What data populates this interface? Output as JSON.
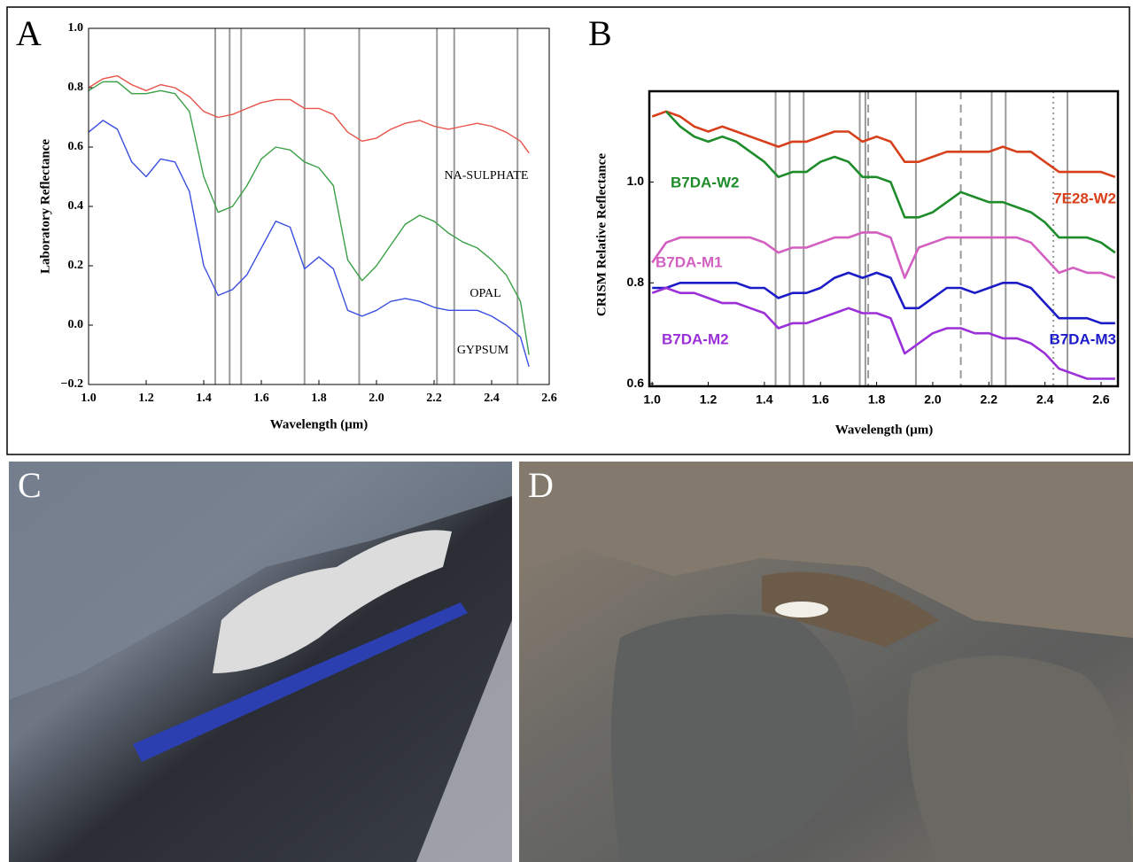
{
  "chart_data": [
    {
      "type": "line",
      "panel_label": "A",
      "x_label": "Wavelength (μm)",
      "y_label": "Laboratory Reflectance",
      "xlim": [
        1.0,
        2.6
      ],
      "ylim": [
        -0.2,
        1.0
      ],
      "xticks": [
        {
          "value": 1,
          "label": "1.0"
        },
        1.2,
        1.4,
        1.6,
        1.8,
        {
          "value": 2,
          "label": "2.0"
        },
        2.2,
        2.4,
        2.6
      ],
      "yticks": [
        {
          "value": -0.2,
          "label": "−0.2"
        },
        {
          "value": 0,
          "label": "0.0"
        },
        0.2,
        0.4,
        0.6,
        0.8,
        {
          "value": 1,
          "label": "1.0"
        }
      ],
      "vlines": [
        1.44,
        1.49,
        1.53,
        1.75,
        1.94,
        2.21,
        2.27,
        2.49
      ],
      "x": [
        1.0,
        1.05,
        1.1,
        1.15,
        1.2,
        1.25,
        1.3,
        1.35,
        1.4,
        1.45,
        1.5,
        1.55,
        1.6,
        1.65,
        1.7,
        1.75,
        1.8,
        1.85,
        1.9,
        1.95,
        2.0,
        2.05,
        2.1,
        2.15,
        2.2,
        2.25,
        2.3,
        2.35,
        2.4,
        2.45,
        2.5,
        2.53
      ],
      "series": [
        {
          "name": "NA-SULPHATE",
          "color": "#e8534a",
          "values": [
            0.8,
            0.83,
            0.84,
            0.81,
            0.79,
            0.81,
            0.8,
            0.77,
            0.72,
            0.7,
            0.71,
            0.73,
            0.75,
            0.76,
            0.76,
            0.73,
            0.73,
            0.71,
            0.65,
            0.62,
            0.63,
            0.66,
            0.68,
            0.69,
            0.67,
            0.66,
            0.67,
            0.68,
            0.67,
            0.65,
            0.62,
            0.58
          ]
        },
        {
          "name": "OPAL",
          "color": "#3aa046",
          "values": [
            0.79,
            0.82,
            0.82,
            0.78,
            0.78,
            0.79,
            0.78,
            0.72,
            0.5,
            0.38,
            0.4,
            0.47,
            0.56,
            0.6,
            0.59,
            0.55,
            0.53,
            0.47,
            0.22,
            0.15,
            0.2,
            0.27,
            0.34,
            0.37,
            0.35,
            0.31,
            0.28,
            0.26,
            0.22,
            0.17,
            0.08,
            -0.1
          ]
        },
        {
          "name": "GYPSUM",
          "color": "#3b4fe0",
          "values": [
            0.65,
            0.69,
            0.66,
            0.55,
            0.5,
            0.56,
            0.55,
            0.45,
            0.2,
            0.1,
            0.12,
            0.17,
            0.26,
            0.35,
            0.33,
            0.19,
            0.23,
            0.19,
            0.05,
            0.03,
            0.05,
            0.08,
            0.09,
            0.08,
            0.06,
            0.05,
            0.05,
            0.05,
            0.03,
            0.0,
            -0.04,
            -0.14
          ]
        }
      ]
    },
    {
      "type": "line",
      "panel_label": "B",
      "x_label": "Wavelength (μm)",
      "y_label": "CRISM Relative Reflectance",
      "xlim": [
        0.99,
        2.66
      ],
      "ylim": [
        0.595,
        1.18
      ],
      "xticks": [
        {
          "value": 1,
          "label": "1.0"
        },
        1.2,
        1.4,
        1.6,
        1.8,
        {
          "value": 2,
          "label": "2.0"
        },
        2.2,
        2.4,
        2.6
      ],
      "yticks": [
        0.6,
        0.8,
        {
          "value": 1,
          "label": "1.0"
        }
      ],
      "vlines": [
        1.44,
        1.49,
        1.54,
        1.74,
        1.76,
        1.94,
        2.21,
        2.26,
        2.48
      ],
      "dashed_vlines": [
        1.77,
        2.1
      ],
      "dotted_vlines": [
        2.43
      ],
      "x": [
        1.0,
        1.05,
        1.1,
        1.15,
        1.2,
        1.25,
        1.3,
        1.35,
        1.4,
        1.45,
        1.5,
        1.55,
        1.6,
        1.65,
        1.7,
        1.75,
        1.8,
        1.85,
        1.9,
        1.95,
        2.0,
        2.05,
        2.1,
        2.15,
        2.2,
        2.25,
        2.3,
        2.35,
        2.4,
        2.45,
        2.5,
        2.55,
        2.6,
        2.65
      ],
      "series": [
        {
          "name": "7E28-W2",
          "color": "#d8401b",
          "values": [
            1.13,
            1.14,
            1.13,
            1.11,
            1.1,
            1.11,
            1.1,
            1.09,
            1.08,
            1.07,
            1.08,
            1.08,
            1.09,
            1.1,
            1.1,
            1.08,
            1.09,
            1.08,
            1.04,
            1.04,
            1.05,
            1.06,
            1.06,
            1.06,
            1.06,
            1.07,
            1.06,
            1.06,
            1.04,
            1.02,
            1.02,
            1.02,
            1.02,
            1.01
          ]
        },
        {
          "name": "B7DA-W2",
          "color": "#1e8c2a",
          "values": [
            null,
            1.14,
            1.11,
            1.09,
            1.08,
            1.09,
            1.08,
            1.06,
            1.04,
            1.01,
            1.02,
            1.02,
            1.04,
            1.05,
            1.04,
            1.01,
            1.01,
            1.0,
            0.93,
            0.93,
            0.94,
            0.96,
            0.98,
            0.97,
            0.96,
            0.96,
            0.95,
            0.94,
            0.92,
            0.89,
            0.89,
            0.89,
            0.88,
            0.86
          ]
        },
        {
          "name": "B7DA-M1",
          "color": "#d35fc0",
          "values": [
            0.84,
            0.88,
            0.89,
            0.89,
            0.89,
            0.89,
            0.89,
            0.89,
            0.88,
            0.86,
            0.87,
            0.87,
            0.88,
            0.89,
            0.89,
            0.9,
            0.9,
            0.89,
            0.81,
            0.87,
            0.88,
            0.89,
            0.89,
            0.89,
            0.89,
            0.89,
            0.89,
            0.88,
            0.85,
            0.82,
            0.83,
            0.82,
            0.82,
            0.81
          ]
        },
        {
          "name": "B7DA-M3",
          "color": "#1b1bc8",
          "values": [
            0.79,
            0.79,
            0.8,
            0.8,
            0.8,
            0.8,
            0.8,
            0.79,
            0.79,
            0.77,
            0.78,
            0.78,
            0.79,
            0.81,
            0.82,
            0.81,
            0.82,
            0.81,
            0.75,
            0.75,
            0.77,
            0.79,
            0.79,
            0.78,
            0.79,
            0.8,
            0.8,
            0.79,
            0.76,
            0.73,
            0.73,
            0.73,
            0.72,
            0.72
          ]
        },
        {
          "name": "B7DA-M2",
          "color": "#9b30d8",
          "values": [
            0.78,
            0.79,
            0.78,
            0.78,
            0.77,
            0.76,
            0.76,
            0.75,
            0.74,
            0.71,
            0.72,
            0.72,
            0.73,
            0.74,
            0.75,
            0.74,
            0.74,
            0.73,
            0.66,
            0.68,
            0.7,
            0.71,
            0.71,
            0.7,
            0.7,
            0.69,
            0.69,
            0.68,
            0.66,
            0.63,
            0.62,
            0.61,
            0.61,
            0.61
          ]
        }
      ]
    }
  ],
  "photos": [
    {
      "label": "C"
    },
    {
      "label": "D"
    }
  ]
}
